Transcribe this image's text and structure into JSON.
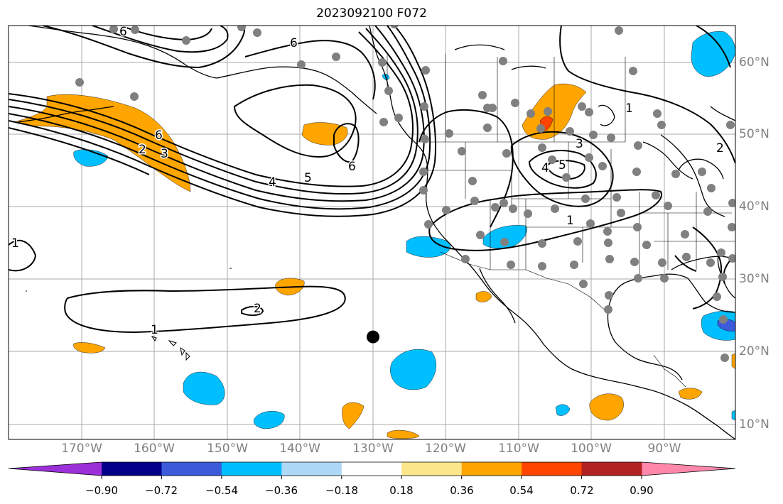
{
  "title": "2023092100 F072",
  "lon_labels": [
    "170°W",
    "160°W",
    "150°W",
    "140°W",
    "130°W",
    "120°W",
    "110°W",
    "100°W",
    "90°W"
  ],
  "lat_labels": [
    "60°N",
    "50°N",
    "40°N",
    "30°N",
    "20°N",
    "10°N"
  ],
  "contour_labels": [
    "6",
    "2",
    "3",
    "4",
    "5",
    "6",
    "6",
    "1",
    "5",
    "4",
    "3",
    "1",
    "2",
    "1",
    "1",
    "2",
    "6"
  ],
  "colorbar": {
    "ticks": [
      "−0.90",
      "−0.72",
      "−0.54",
      "−0.36",
      "−0.18",
      "0.18",
      "0.36",
      "0.54",
      "0.72",
      "0.90"
    ],
    "colors": [
      "#9b30d8",
      "#00008b",
      "#3b5bdb",
      "#00bfff",
      "#add8f6",
      "#ffffff",
      "#fce68a",
      "#ffa500",
      "#ff4500",
      "#b22222",
      "#ff88aa"
    ]
  },
  "station_count": 95,
  "marker": {
    "lon": -130,
    "lat": 22
  }
}
